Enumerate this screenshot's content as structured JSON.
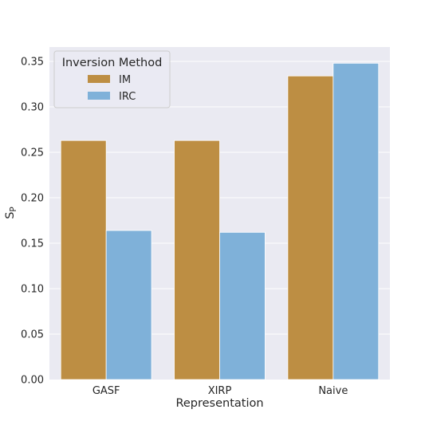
{
  "chart_data": {
    "type": "bar",
    "categories": [
      "GASF",
      "XIRP",
      "Naive"
    ],
    "series": [
      {
        "name": "IM",
        "values": [
          0.263,
          0.263,
          0.334
        ],
        "color": "#bd8e43"
      },
      {
        "name": "IRC",
        "values": [
          0.164,
          0.162,
          0.348
        ],
        "color": "#7fb1d9"
      }
    ],
    "xlabel": "Representation",
    "ylabel": "Sp",
    "ylim": [
      0,
      0.36
    ],
    "yticks": [
      "0.00",
      "0.05",
      "0.10",
      "0.15",
      "0.20",
      "0.25",
      "0.30",
      "0.35"
    ],
    "legend": {
      "title": "Inversion Method",
      "placement": "top-left"
    },
    "grid": true,
    "plot_background": "#eaeaf2"
  }
}
